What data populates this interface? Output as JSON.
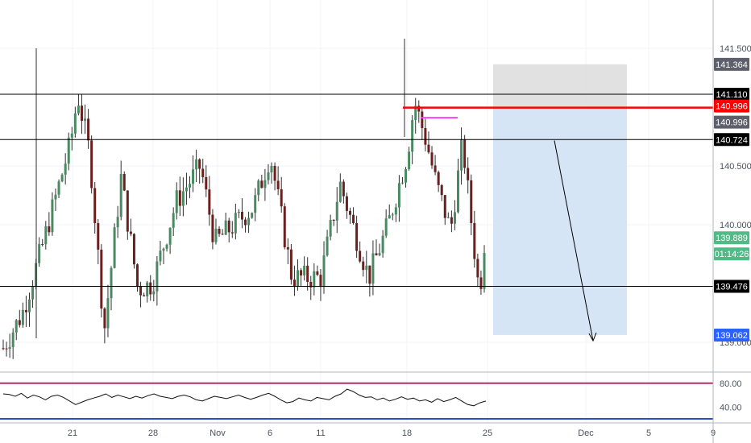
{
  "chart_data": {
    "type": "candlestick",
    "price_axis": {
      "ticks": [
        {
          "label": "141.500",
          "value": 141.5
        },
        {
          "label": "140.500",
          "value": 140.5
        },
        {
          "label": "140.000",
          "value": 140.0
        },
        {
          "label": "139.000",
          "value": 139.0
        }
      ],
      "range": [
        138.85,
        141.85
      ]
    },
    "time_axis": {
      "ticks": [
        "21",
        "28",
        "Nov",
        "6",
        "11",
        "18",
        "25",
        "Dec",
        "5",
        "9"
      ]
    },
    "horizontal_levels": [
      {
        "price": 141.11,
        "label": "141.110",
        "color": "#000000"
      },
      {
        "price": 140.724,
        "label": "140.724",
        "color": "#000000"
      },
      {
        "price": 139.476,
        "label": "139.476",
        "color": "#000000"
      },
      {
        "price": 140.996,
        "label": "140.996",
        "color": "#ff0000"
      }
    ],
    "price_badges": [
      {
        "label": "141.364",
        "value": 141.364,
        "bg": "#5d606b",
        "fg": "#ffffff"
      },
      {
        "label": "140.996",
        "value": 140.996,
        "bg": "#5d606b",
        "fg": "#ffffff"
      },
      {
        "label": "139.889",
        "value": 139.889,
        "bg": "#53b987",
        "fg": "#ffffff"
      },
      {
        "label": "01:14:26",
        "value": 139.79,
        "bg": "#53b987",
        "fg": "#ffffff"
      },
      {
        "label": "139.062",
        "value": 139.062,
        "bg": "#2962ff",
        "fg": "#ffffff"
      }
    ],
    "position_tool": {
      "entry": 140.996,
      "stop": 141.364,
      "target": 139.062,
      "stop_color": "#d9d9d9",
      "target_color": "#cfe0f5"
    },
    "trend_arrow": {
      "from_price": 140.75,
      "to_price": 139.15
    },
    "resistance_segment": {
      "price": 140.91,
      "color": "#ff40ff"
    },
    "candles": {
      "up_color": "#4a8a62",
      "down_color": "#6b1f1f",
      "wick_color": "#2f2f2f",
      "anchors": [
        {
          "t": 0,
          "p": 138.95
        },
        {
          "t": 0.04,
          "p": 139.25
        },
        {
          "t": 0.08,
          "p": 139.8
        },
        {
          "t": 0.14,
          "p": 140.7
        },
        {
          "t": 0.155,
          "p": 141.1
        },
        {
          "t": 0.18,
          "p": 140.6
        },
        {
          "t": 0.21,
          "p": 139.1
        },
        {
          "t": 0.245,
          "p": 140.4
        },
        {
          "t": 0.28,
          "p": 139.45
        },
        {
          "t": 0.31,
          "p": 139.5
        },
        {
          "t": 0.36,
          "p": 140.2
        },
        {
          "t": 0.41,
          "p": 140.5
        },
        {
          "t": 0.44,
          "p": 139.85
        },
        {
          "t": 0.52,
          "p": 140.15
        },
        {
          "t": 0.555,
          "p": 140.6
        },
        {
          "t": 0.6,
          "p": 139.55
        },
        {
          "t": 0.66,
          "p": 139.55
        },
        {
          "t": 0.7,
          "p": 140.35
        },
        {
          "t": 0.76,
          "p": 139.55
        },
        {
          "t": 0.8,
          "p": 140.0
        },
        {
          "t": 0.84,
          "p": 140.6
        },
        {
          "t": 0.855,
          "p": 141.05
        },
        {
          "t": 0.88,
          "p": 140.7
        },
        {
          "t": 0.9,
          "p": 140.35
        },
        {
          "t": 0.93,
          "p": 139.95
        },
        {
          "t": 0.955,
          "p": 140.7
        },
        {
          "t": 0.975,
          "p": 139.95
        },
        {
          "t": 0.99,
          "p": 139.4
        },
        {
          "t": 1.0,
          "p": 139.85
        }
      ]
    },
    "oscillator": {
      "ticks": [
        {
          "label": "80.00",
          "value": 80
        },
        {
          "label": "40.00",
          "value": 40
        }
      ],
      "upper_band": 80,
      "lower_band": 20,
      "upper_color": "#b0306b",
      "lower_color": "#2a4fbf",
      "range": [
        18,
        92
      ],
      "values": [
        62,
        61,
        58,
        63,
        55,
        60,
        57,
        52,
        58,
        60,
        56,
        50,
        44,
        48,
        52,
        55,
        58,
        62,
        56,
        60,
        57,
        54,
        58,
        55,
        59,
        62,
        58,
        56,
        54,
        58,
        60,
        57,
        52,
        50,
        54,
        58,
        56,
        54,
        57,
        60,
        56,
        53,
        56,
        60,
        63,
        58,
        52,
        47,
        49,
        55,
        52,
        50,
        56,
        54,
        52,
        58,
        62,
        70,
        66,
        60,
        56,
        57,
        52,
        55,
        50,
        53,
        57,
        53,
        55,
        50,
        52,
        48,
        54,
        49,
        52,
        56,
        50,
        44,
        42,
        47,
        50
      ]
    }
  }
}
